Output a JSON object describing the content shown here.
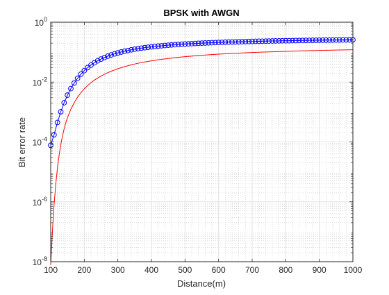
{
  "chart_data": {
    "type": "line",
    "title": "BPSK with AWGN",
    "xlabel": "Distance(m)",
    "ylabel": "Bit error rate",
    "xlim": [
      100,
      1000
    ],
    "ylim": [
      1e-08,
      1
    ],
    "yscale": "log",
    "grid": true,
    "minor_grid": true,
    "legend": "none",
    "x_ticks": [
      100,
      200,
      300,
      400,
      500,
      600,
      700,
      800,
      900,
      1000
    ],
    "x_tick_labels": [
      "100",
      "200",
      "300",
      "400",
      "500",
      "600",
      "700",
      "800",
      "900",
      "1000"
    ],
    "y_ticks": [
      {
        "value": 1e-08,
        "base": "10",
        "exp": "-8"
      },
      {
        "value": 1e-06,
        "base": "10",
        "exp": "-6"
      },
      {
        "value": 0.0001,
        "base": "10",
        "exp": "-4"
      },
      {
        "value": 0.01,
        "base": "10",
        "exp": "-2"
      },
      {
        "value": 1,
        "base": "10",
        "exp": "0"
      }
    ],
    "series": [
      {
        "style": "markers-and-line",
        "marker": "circle",
        "color": "#0000ff",
        "x": [
          100,
          110,
          120,
          130,
          140,
          150,
          160,
          170,
          180,
          190,
          200,
          210,
          220,
          230,
          240,
          250,
          260,
          270,
          280,
          290,
          300,
          310,
          320,
          330,
          340,
          350,
          360,
          370,
          380,
          390,
          400,
          410,
          420,
          430,
          440,
          450,
          460,
          470,
          480,
          490,
          500,
          510,
          520,
          530,
          540,
          550,
          560,
          570,
          580,
          590,
          600,
          610,
          620,
          630,
          640,
          650,
          660,
          670,
          680,
          690,
          700,
          710,
          720,
          730,
          740,
          750,
          760,
          770,
          780,
          790,
          800,
          810,
          820,
          830,
          840,
          850,
          860,
          870,
          880,
          890,
          900,
          910,
          920,
          930,
          940,
          950,
          960,
          970,
          980,
          990,
          1000
        ],
        "y": [
          7.73e-05,
          0.000174,
          0.000447,
          0.00102,
          0.00204,
          0.00367,
          0.00605,
          0.00929,
          0.0134,
          0.0184,
          0.0241,
          0.0304,
          0.0371,
          0.0442,
          0.0515,
          0.0588,
          0.0662,
          0.0735,
          0.0807,
          0.0877,
          0.0945,
          0.101,
          0.1075,
          0.1137,
          0.1197,
          0.1254,
          0.1309,
          0.1361,
          0.1411,
          0.1458,
          0.1504,
          0.1548,
          0.159,
          0.1629,
          0.1668,
          0.1704,
          0.174,
          0.1773,
          0.1805,
          0.1836,
          0.1866,
          0.1895,
          0.1922,
          0.1949,
          0.1974,
          0.1999,
          0.2022,
          0.2045,
          0.2067,
          0.2088,
          0.2109,
          0.2128,
          0.2147,
          0.2166,
          0.2184,
          0.2201,
          0.2218,
          0.2234,
          0.225,
          0.2265,
          0.228,
          0.2294,
          0.2308,
          0.2322,
          0.2335,
          0.2348,
          0.236,
          0.2372,
          0.2384,
          0.2396,
          0.2407,
          0.2418,
          0.2428,
          0.2439,
          0.2449,
          0.2458,
          0.2468,
          0.2477,
          0.2486,
          0.2495,
          0.2504,
          0.2512,
          0.252,
          0.2528,
          0.2536,
          0.2544,
          0.2551,
          0.2559,
          0.2566,
          0.2573,
          0.258
        ]
      },
      {
        "style": "line",
        "color": "#ff0000",
        "x": [
          100,
          105,
          110,
          115,
          120,
          125,
          130,
          135,
          140,
          145,
          150,
          160,
          170,
          180,
          190,
          200,
          210,
          220,
          230,
          240,
          250,
          260,
          270,
          280,
          290,
          300,
          320,
          340,
          360,
          380,
          400,
          420,
          440,
          460,
          480,
          500,
          550,
          600,
          650,
          700,
          750,
          800,
          850,
          900,
          950,
          1000
        ],
        "y": [
          7.7e-09,
          1e-07,
          7.8e-07,
          3.8e-06,
          1.33e-05,
          3.6e-05,
          8.1e-05,
          0.000158,
          0.000273,
          0.000436,
          0.00065,
          0.00124,
          0.00206,
          0.00313,
          0.00444,
          0.00596,
          0.00767,
          0.00955,
          0.0116,
          0.0137,
          0.0159,
          0.0182,
          0.0206,
          0.023,
          0.0254,
          0.0279,
          0.0328,
          0.0377,
          0.0424,
          0.047,
          0.0514,
          0.0556,
          0.0596,
          0.0635,
          0.0671,
          0.0706,
          0.0785,
          0.0855,
          0.0917,
          0.0972,
          0.1021,
          0.1065,
          0.1105,
          0.1141,
          0.1173,
          0.1203
        ]
      }
    ]
  }
}
